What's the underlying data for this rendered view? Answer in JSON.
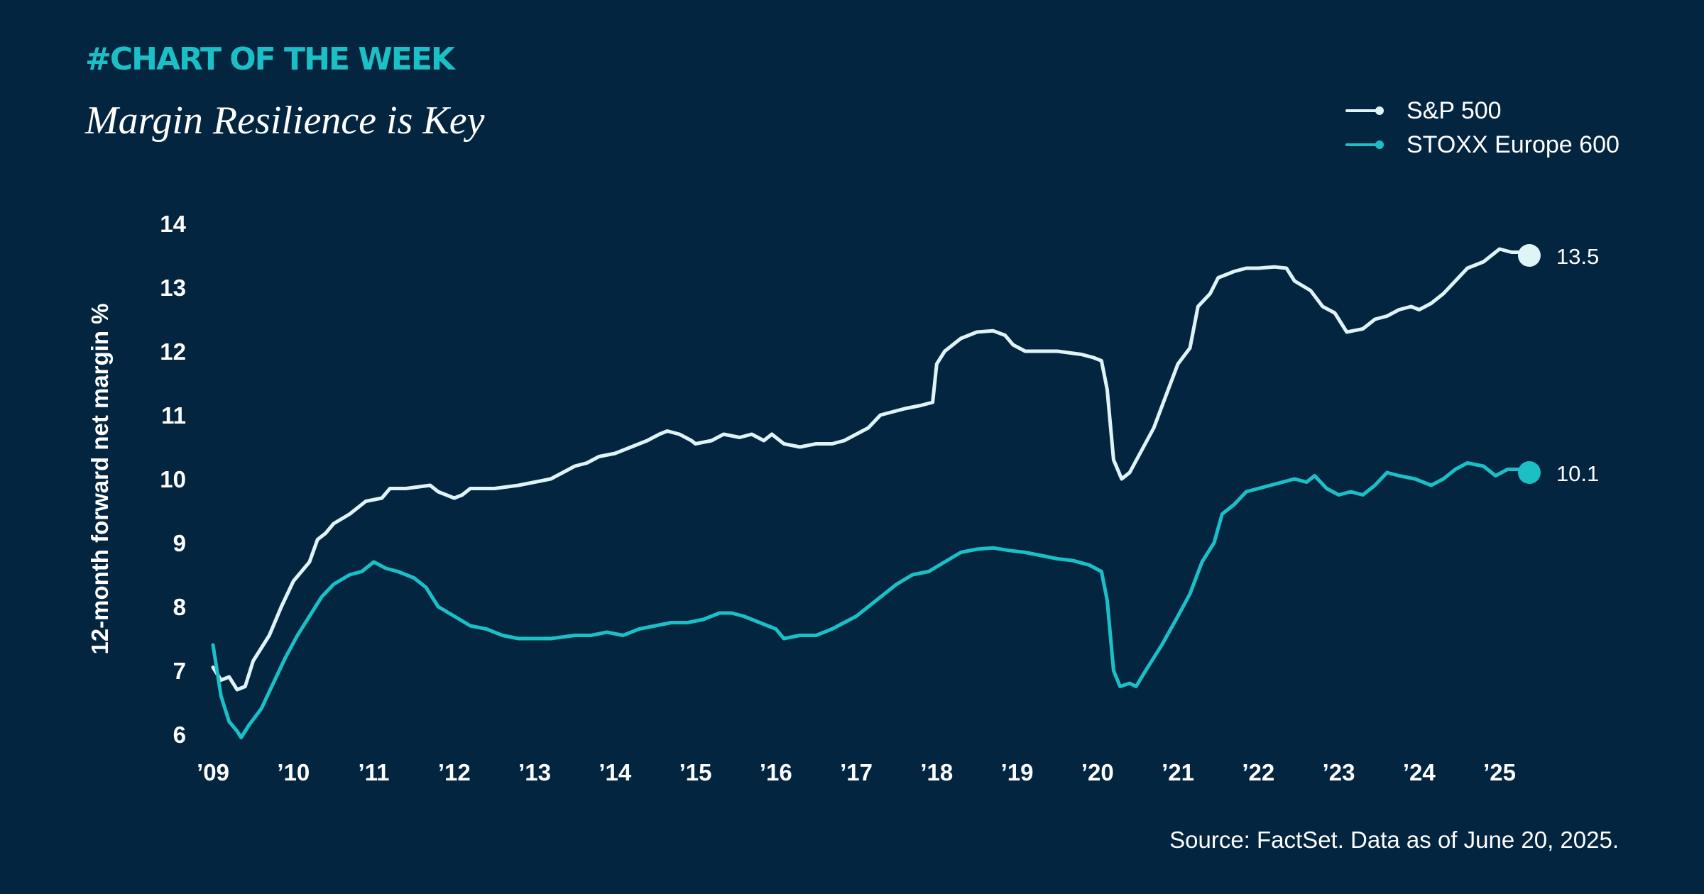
{
  "header": {
    "kicker": "#CHART OF THE WEEK",
    "title": "Margin Resilience is Key"
  },
  "colors": {
    "background": "#032540",
    "sp500": "#dff4f6",
    "stoxx": "#1ac0c6",
    "text": "#ffffff",
    "kicker": "#1ac0c6"
  },
  "legend": {
    "position": "top-right",
    "items": [
      {
        "label": "S&P 500"
      },
      {
        "label": "STOXX Europe 600"
      }
    ]
  },
  "footer": {
    "source": "Source: FactSet. Data as of June 20, 2025."
  },
  "chart_data": {
    "type": "line",
    "title": "",
    "xlabel": "",
    "ylabel": "12-month forward net margin %",
    "xlim": [
      2009.0,
      2025.6
    ],
    "ylim": [
      6,
      14
    ],
    "grid": false,
    "yticks": [
      6,
      7,
      8,
      9,
      10,
      11,
      12,
      13,
      14
    ],
    "xticks": [
      {
        "value": 2009,
        "label": "’09"
      },
      {
        "value": 2010,
        "label": "’10"
      },
      {
        "value": 2011,
        "label": "’11"
      },
      {
        "value": 2012,
        "label": "’12"
      },
      {
        "value": 2013,
        "label": "’13"
      },
      {
        "value": 2014,
        "label": "’14"
      },
      {
        "value": 2015,
        "label": "’15"
      },
      {
        "value": 2016,
        "label": "’16"
      },
      {
        "value": 2017,
        "label": "’17"
      },
      {
        "value": 2018,
        "label": "’18"
      },
      {
        "value": 2019,
        "label": "’19"
      },
      {
        "value": 2020,
        "label": "’20"
      },
      {
        "value": 2021,
        "label": "’21"
      },
      {
        "value": 2022,
        "label": "’22"
      },
      {
        "value": 2023,
        "label": "’23"
      },
      {
        "value": 2024,
        "label": "’24"
      },
      {
        "value": 2025,
        "label": "’25"
      }
    ],
    "series": [
      {
        "name": "S&P 500",
        "end_label": "13.5",
        "points": [
          [
            2009.0,
            7.05
          ],
          [
            2009.1,
            6.85
          ],
          [
            2009.2,
            6.9
          ],
          [
            2009.3,
            6.7
          ],
          [
            2009.4,
            6.75
          ],
          [
            2009.5,
            7.15
          ],
          [
            2009.7,
            7.55
          ],
          [
            2009.85,
            8.0
          ],
          [
            2010.0,
            8.4
          ],
          [
            2010.2,
            8.7
          ],
          [
            2010.3,
            9.05
          ],
          [
            2010.4,
            9.15
          ],
          [
            2010.5,
            9.3
          ],
          [
            2010.7,
            9.45
          ],
          [
            2010.8,
            9.55
          ],
          [
            2010.9,
            9.65
          ],
          [
            2011.1,
            9.7
          ],
          [
            2011.2,
            9.85
          ],
          [
            2011.4,
            9.85
          ],
          [
            2011.7,
            9.9
          ],
          [
            2011.8,
            9.8
          ],
          [
            2011.9,
            9.75
          ],
          [
            2012.0,
            9.7
          ],
          [
            2012.1,
            9.75
          ],
          [
            2012.2,
            9.85
          ],
          [
            2012.5,
            9.85
          ],
          [
            2012.8,
            9.9
          ],
          [
            2013.0,
            9.95
          ],
          [
            2013.2,
            10.0
          ],
          [
            2013.35,
            10.1
          ],
          [
            2013.5,
            10.2
          ],
          [
            2013.65,
            10.25
          ],
          [
            2013.8,
            10.35
          ],
          [
            2014.0,
            10.4
          ],
          [
            2014.2,
            10.5
          ],
          [
            2014.4,
            10.6
          ],
          [
            2014.55,
            10.7
          ],
          [
            2014.65,
            10.75
          ],
          [
            2014.8,
            10.7
          ],
          [
            2014.95,
            10.6
          ],
          [
            2015.0,
            10.55
          ],
          [
            2015.2,
            10.6
          ],
          [
            2015.35,
            10.7
          ],
          [
            2015.55,
            10.65
          ],
          [
            2015.7,
            10.7
          ],
          [
            2015.85,
            10.6
          ],
          [
            2015.95,
            10.7
          ],
          [
            2016.1,
            10.55
          ],
          [
            2016.3,
            10.5
          ],
          [
            2016.5,
            10.55
          ],
          [
            2016.7,
            10.55
          ],
          [
            2016.85,
            10.6
          ],
          [
            2017.0,
            10.7
          ],
          [
            2017.15,
            10.8
          ],
          [
            2017.3,
            11.0
          ],
          [
            2017.45,
            11.05
          ],
          [
            2017.6,
            11.1
          ],
          [
            2017.8,
            11.15
          ],
          [
            2017.95,
            11.2
          ],
          [
            2018.0,
            11.8
          ],
          [
            2018.1,
            12.0
          ],
          [
            2018.3,
            12.2
          ],
          [
            2018.5,
            12.3
          ],
          [
            2018.7,
            12.32
          ],
          [
            2018.85,
            12.25
          ],
          [
            2018.95,
            12.1
          ],
          [
            2019.1,
            12.0
          ],
          [
            2019.3,
            12.0
          ],
          [
            2019.5,
            12.0
          ],
          [
            2019.8,
            11.95
          ],
          [
            2019.95,
            11.9
          ],
          [
            2020.05,
            11.85
          ],
          [
            2020.12,
            11.4
          ],
          [
            2020.2,
            10.3
          ],
          [
            2020.3,
            10.0
          ],
          [
            2020.4,
            10.1
          ],
          [
            2020.55,
            10.45
          ],
          [
            2020.7,
            10.8
          ],
          [
            2020.85,
            11.3
          ],
          [
            2021.0,
            11.8
          ],
          [
            2021.15,
            12.05
          ],
          [
            2021.25,
            12.7
          ],
          [
            2021.4,
            12.9
          ],
          [
            2021.5,
            13.15
          ],
          [
            2021.7,
            13.25
          ],
          [
            2021.85,
            13.3
          ],
          [
            2022.0,
            13.3
          ],
          [
            2022.2,
            13.32
          ],
          [
            2022.35,
            13.3
          ],
          [
            2022.45,
            13.1
          ],
          [
            2022.65,
            12.95
          ],
          [
            2022.8,
            12.7
          ],
          [
            2022.95,
            12.6
          ],
          [
            2023.1,
            12.3
          ],
          [
            2023.3,
            12.35
          ],
          [
            2023.45,
            12.5
          ],
          [
            2023.6,
            12.55
          ],
          [
            2023.75,
            12.65
          ],
          [
            2023.9,
            12.7
          ],
          [
            2024.0,
            12.65
          ],
          [
            2024.15,
            12.75
          ],
          [
            2024.3,
            12.9
          ],
          [
            2024.45,
            13.1
          ],
          [
            2024.6,
            13.3
          ],
          [
            2024.8,
            13.4
          ],
          [
            2025.0,
            13.6
          ],
          [
            2025.15,
            13.55
          ],
          [
            2025.3,
            13.55
          ],
          [
            2025.37,
            13.5
          ]
        ]
      },
      {
        "name": "STOXX Europe 600",
        "end_label": "10.1",
        "points": [
          [
            2009.0,
            7.4
          ],
          [
            2009.1,
            6.6
          ],
          [
            2009.2,
            6.2
          ],
          [
            2009.3,
            6.05
          ],
          [
            2009.35,
            5.95
          ],
          [
            2009.45,
            6.15
          ],
          [
            2009.6,
            6.4
          ],
          [
            2009.75,
            6.8
          ],
          [
            2009.9,
            7.2
          ],
          [
            2010.05,
            7.55
          ],
          [
            2010.2,
            7.85
          ],
          [
            2010.35,
            8.15
          ],
          [
            2010.5,
            8.35
          ],
          [
            2010.7,
            8.5
          ],
          [
            2010.85,
            8.55
          ],
          [
            2011.0,
            8.7
          ],
          [
            2011.15,
            8.6
          ],
          [
            2011.3,
            8.55
          ],
          [
            2011.5,
            8.45
          ],
          [
            2011.65,
            8.3
          ],
          [
            2011.8,
            8.0
          ],
          [
            2012.0,
            7.85
          ],
          [
            2012.2,
            7.7
          ],
          [
            2012.4,
            7.65
          ],
          [
            2012.6,
            7.55
          ],
          [
            2012.8,
            7.5
          ],
          [
            2013.0,
            7.5
          ],
          [
            2013.2,
            7.5
          ],
          [
            2013.5,
            7.55
          ],
          [
            2013.7,
            7.55
          ],
          [
            2013.9,
            7.6
          ],
          [
            2014.1,
            7.55
          ],
          [
            2014.3,
            7.65
          ],
          [
            2014.5,
            7.7
          ],
          [
            2014.7,
            7.75
          ],
          [
            2014.9,
            7.75
          ],
          [
            2015.1,
            7.8
          ],
          [
            2015.3,
            7.9
          ],
          [
            2015.45,
            7.9
          ],
          [
            2015.6,
            7.85
          ],
          [
            2015.8,
            7.75
          ],
          [
            2016.0,
            7.65
          ],
          [
            2016.1,
            7.5
          ],
          [
            2016.3,
            7.55
          ],
          [
            2016.5,
            7.55
          ],
          [
            2016.7,
            7.65
          ],
          [
            2016.85,
            7.75
          ],
          [
            2017.0,
            7.85
          ],
          [
            2017.2,
            8.05
          ],
          [
            2017.35,
            8.2
          ],
          [
            2017.5,
            8.35
          ],
          [
            2017.7,
            8.5
          ],
          [
            2017.9,
            8.55
          ],
          [
            2018.1,
            8.7
          ],
          [
            2018.3,
            8.85
          ],
          [
            2018.5,
            8.9
          ],
          [
            2018.7,
            8.92
          ],
          [
            2018.9,
            8.88
          ],
          [
            2019.1,
            8.85
          ],
          [
            2019.3,
            8.8
          ],
          [
            2019.5,
            8.75
          ],
          [
            2019.7,
            8.72
          ],
          [
            2019.9,
            8.65
          ],
          [
            2020.05,
            8.55
          ],
          [
            2020.12,
            8.1
          ],
          [
            2020.2,
            7.0
          ],
          [
            2020.28,
            6.75
          ],
          [
            2020.4,
            6.8
          ],
          [
            2020.48,
            6.75
          ],
          [
            2020.6,
            7.0
          ],
          [
            2020.8,
            7.4
          ],
          [
            2021.0,
            7.85
          ],
          [
            2021.15,
            8.2
          ],
          [
            2021.3,
            8.7
          ],
          [
            2021.45,
            9.0
          ],
          [
            2021.55,
            9.45
          ],
          [
            2021.7,
            9.6
          ],
          [
            2021.85,
            9.8
          ],
          [
            2022.0,
            9.85
          ],
          [
            2022.15,
            9.9
          ],
          [
            2022.3,
            9.95
          ],
          [
            2022.45,
            10.0
          ],
          [
            2022.6,
            9.95
          ],
          [
            2022.7,
            10.05
          ],
          [
            2022.85,
            9.85
          ],
          [
            2023.0,
            9.75
          ],
          [
            2023.15,
            9.8
          ],
          [
            2023.3,
            9.75
          ],
          [
            2023.45,
            9.9
          ],
          [
            2023.6,
            10.1
          ],
          [
            2023.75,
            10.05
          ],
          [
            2023.95,
            10.0
          ],
          [
            2024.15,
            9.9
          ],
          [
            2024.3,
            10.0
          ],
          [
            2024.45,
            10.15
          ],
          [
            2024.6,
            10.25
          ],
          [
            2024.8,
            10.2
          ],
          [
            2024.95,
            10.05
          ],
          [
            2025.1,
            10.15
          ],
          [
            2025.25,
            10.15
          ],
          [
            2025.37,
            10.1
          ]
        ]
      }
    ]
  }
}
